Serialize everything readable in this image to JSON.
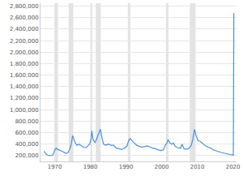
{
  "chart_data": {
    "type": "line",
    "color": "#4a90d9",
    "grid": true,
    "x": [
      1967.0,
      1967.5,
      1968.0,
      1968.5,
      1969.0,
      1969.5,
      1970.0,
      1970.4,
      1970.8,
      1971.3,
      1971.8,
      1972.3,
      1972.8,
      1973.3,
      1973.8,
      1974.3,
      1974.7,
      1975.0,
      1975.3,
      1975.7,
      1976.2,
      1976.8,
      1977.3,
      1977.8,
      1978.3,
      1978.8,
      1979.3,
      1979.8,
      1980.2,
      1980.4,
      1980.8,
      1981.3,
      1981.7,
      1982.2,
      1982.5,
      1982.8,
      1983.2,
      1983.7,
      1984.3,
      1985.0,
      1985.8,
      1986.5,
      1987.3,
      1988.0,
      1988.8,
      1989.5,
      1990.2,
      1990.8,
      1991.2,
      1991.8,
      1992.4,
      1993.0,
      1993.8,
      1994.5,
      1995.3,
      1996.0,
      1996.8,
      1997.5,
      1998.3,
      1999.0,
      1999.8,
      2000.5,
      2001.0,
      2001.5,
      2001.8,
      2002.3,
      2002.8,
      2003.3,
      2003.8,
      2004.5,
      2005.3,
      2005.7,
      2006.3,
      2007.0,
      2007.7,
      2008.3,
      2008.8,
      2009.2,
      2009.6,
      2010.2,
      2010.8,
      2011.5,
      2012.3,
      2013.0,
      2013.8,
      2014.5,
      2015.3,
      2016.0,
      2016.8,
      2017.5,
      2018.3,
      2019.0,
      2019.8,
      2020.1,
      2020.25
    ],
    "values": [
      280000,
      230000,
      210000,
      200000,
      205000,
      215000,
      300000,
      330000,
      310000,
      300000,
      280000,
      270000,
      250000,
      240000,
      260000,
      330000,
      420000,
      550000,
      500000,
      430000,
      380000,
      400000,
      380000,
      360000,
      340000,
      340000,
      370000,
      400000,
      500000,
      630000,
      470000,
      430000,
      480000,
      560000,
      600000,
      660000,
      520000,
      400000,
      380000,
      400000,
      380000,
      380000,
      330000,
      320000,
      310000,
      330000,
      360000,
      470000,
      500000,
      450000,
      420000,
      380000,
      360000,
      350000,
      360000,
      370000,
      350000,
      330000,
      320000,
      300000,
      290000,
      300000,
      380000,
      420000,
      480000,
      420000,
      400000,
      420000,
      360000,
      340000,
      330000,
      400000,
      320000,
      310000,
      330000,
      380000,
      500000,
      660000,
      560000,
      460000,
      450000,
      410000,
      370000,
      350000,
      330000,
      300000,
      280000,
      270000,
      255000,
      245000,
      225000,
      220000,
      215000,
      210000,
      2680000
    ],
    "shaded_periods": [
      [
        1969.9,
        1970.9
      ],
      [
        1973.9,
        1975.2
      ],
      [
        1980.0,
        1980.5
      ],
      [
        1981.5,
        1982.9
      ],
      [
        1990.5,
        1991.2
      ],
      [
        2001.2,
        2001.9
      ],
      [
        2007.9,
        2009.5
      ]
    ],
    "xlim": [
      1966,
      2021
    ],
    "xticks": [
      1970,
      1980,
      1990,
      2000,
      2010,
      2020
    ],
    "ylim": [
      100000,
      2850000
    ],
    "yticks": [
      {
        "value": 200000,
        "label": "200,000"
      },
      {
        "value": 400000,
        "label": "400,000"
      },
      {
        "value": 600000,
        "label": "600,000"
      },
      {
        "value": 800000,
        "label": "800,000"
      },
      {
        "value": 1000000,
        "label": "1,000,000"
      },
      {
        "value": 1200000,
        "label": "1,200,000"
      },
      {
        "value": 1400000,
        "label": "1,400,000"
      },
      {
        "value": 1600000,
        "label": "1,600,000"
      },
      {
        "value": 1800000,
        "label": "1,800,000"
      },
      {
        "value": 2000000,
        "label": "2,000,000"
      },
      {
        "value": 2200000,
        "label": "2,200,000"
      },
      {
        "value": 2400000,
        "label": "2,400,000"
      },
      {
        "value": 2600000,
        "label": "2,600,000"
      },
      {
        "value": 2800000,
        "label": "2,800,000"
      }
    ]
  }
}
